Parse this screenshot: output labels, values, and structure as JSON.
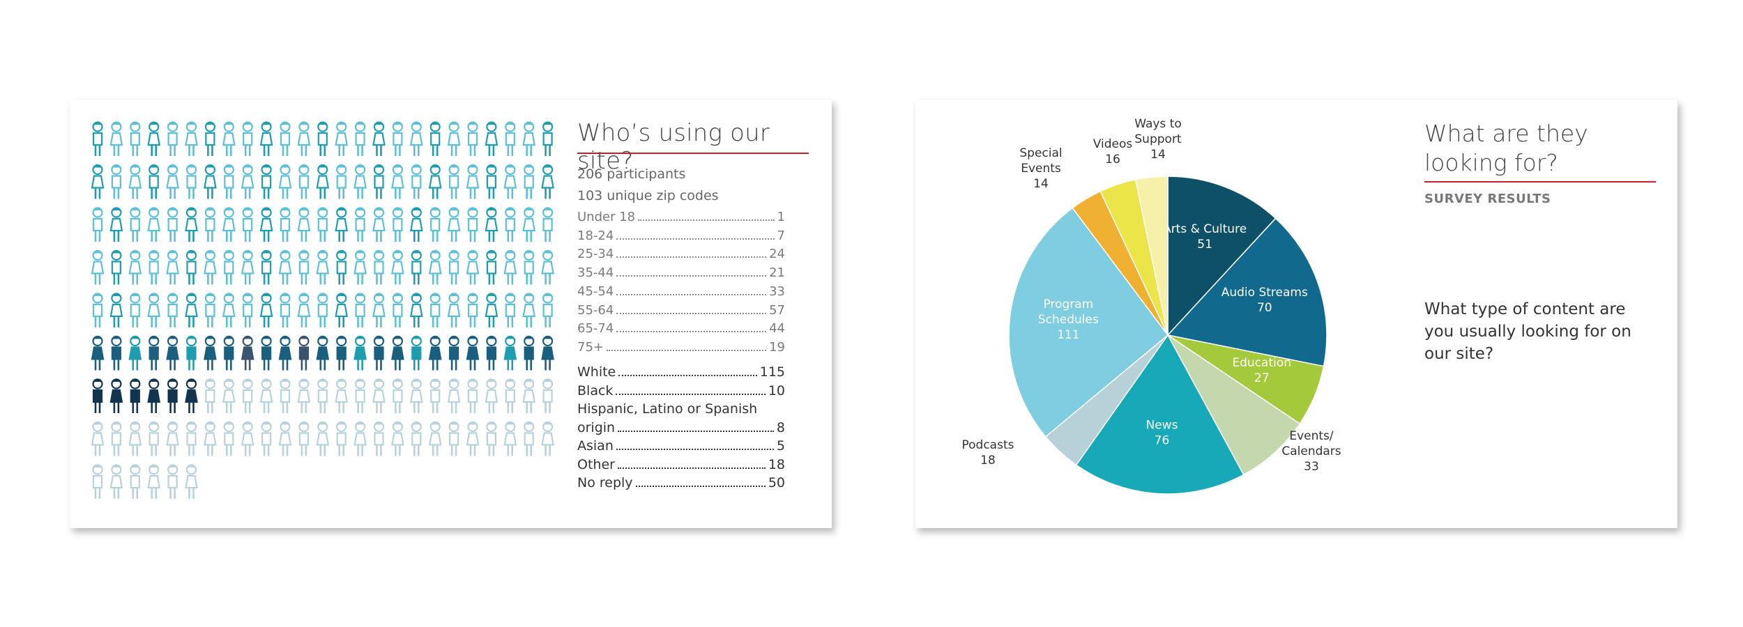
{
  "left_panel": {
    "title": "Who’s using our site?",
    "participants": "206 participants",
    "zip_codes": "103 unique zip codes",
    "age_groups": [
      {
        "label": "Under 18",
        "value": "1"
      },
      {
        "label": "18-24",
        "value": "7"
      },
      {
        "label": "25-34",
        "value": "24"
      },
      {
        "label": "35-44",
        "value": "21"
      },
      {
        "label": "45-54",
        "value": "33"
      },
      {
        "label": "55-64",
        "value": "57"
      },
      {
        "label": "65-74",
        "value": "44"
      },
      {
        "label": "75+",
        "value": "19"
      }
    ],
    "ethnicity": [
      {
        "label": "White",
        "value": "115"
      },
      {
        "label": "Black",
        "value": "10"
      },
      {
        "label": "Hispanic, Latino or Spanish",
        "label_line2": "origin",
        "value": "8"
      },
      {
        "label": "Asian",
        "value": "5"
      },
      {
        "label": "Other",
        "value": "18"
      },
      {
        "label": "No reply",
        "value": "50"
      }
    ],
    "people_grid": {
      "total": 206,
      "colors": {
        "light": "#5ec0d6",
        "teal": "#1f9db0",
        "dark": "#1a5f7e",
        "navy": "#12344f",
        "slate": "#3a5470",
        "pale": "#b8d2dc"
      }
    }
  },
  "right_panel": {
    "title": "What are they looking for?",
    "subtitle": "SURVEY RESULTS",
    "question": "What type of content are you usually looking for on our site?"
  },
  "chart_data": {
    "type": "pie",
    "title": "",
    "series": [
      {
        "label": "Arts & Culture",
        "label_lines": [
          "Arts & Culture"
        ],
        "value": 51,
        "color": "#0e5067",
        "label_inside": true
      },
      {
        "label": "Audio Streams",
        "label_lines": [
          "Audio Streams"
        ],
        "value": 70,
        "color": "#11698d",
        "label_inside": true
      },
      {
        "label": "Education",
        "label_lines": [
          "Education"
        ],
        "value": 27,
        "color": "#a4c93a",
        "label_inside": true
      },
      {
        "label": "Events/ Calendars",
        "label_lines": [
          "Events/",
          "Calendars"
        ],
        "value": 33,
        "color": "#c5d8ad",
        "label_inside": false
      },
      {
        "label": "News",
        "label_lines": [
          "News"
        ],
        "value": 76,
        "color": "#17a9b8",
        "label_inside": true
      },
      {
        "label": "Podcasts",
        "label_lines": [
          "Podcasts"
        ],
        "value": 18,
        "color": "#b8d0d7",
        "label_inside": false
      },
      {
        "label": "Program Schedules",
        "label_lines": [
          "Program",
          "Schedules"
        ],
        "value": 111,
        "color": "#7fcde0",
        "label_inside": true
      },
      {
        "label": "Special Events",
        "label_lines": [
          "Special",
          "Events"
        ],
        "value": 14,
        "color": "#f0b132",
        "label_inside": false
      },
      {
        "label": "Videos",
        "label_lines": [
          "Videos"
        ],
        "value": 16,
        "color": "#ece549",
        "label_inside": false
      },
      {
        "label": "Ways to Support",
        "label_lines": [
          "Ways to",
          "Support"
        ],
        "value": 14,
        "color": "#f6f0a8",
        "label_inside": false
      }
    ]
  }
}
